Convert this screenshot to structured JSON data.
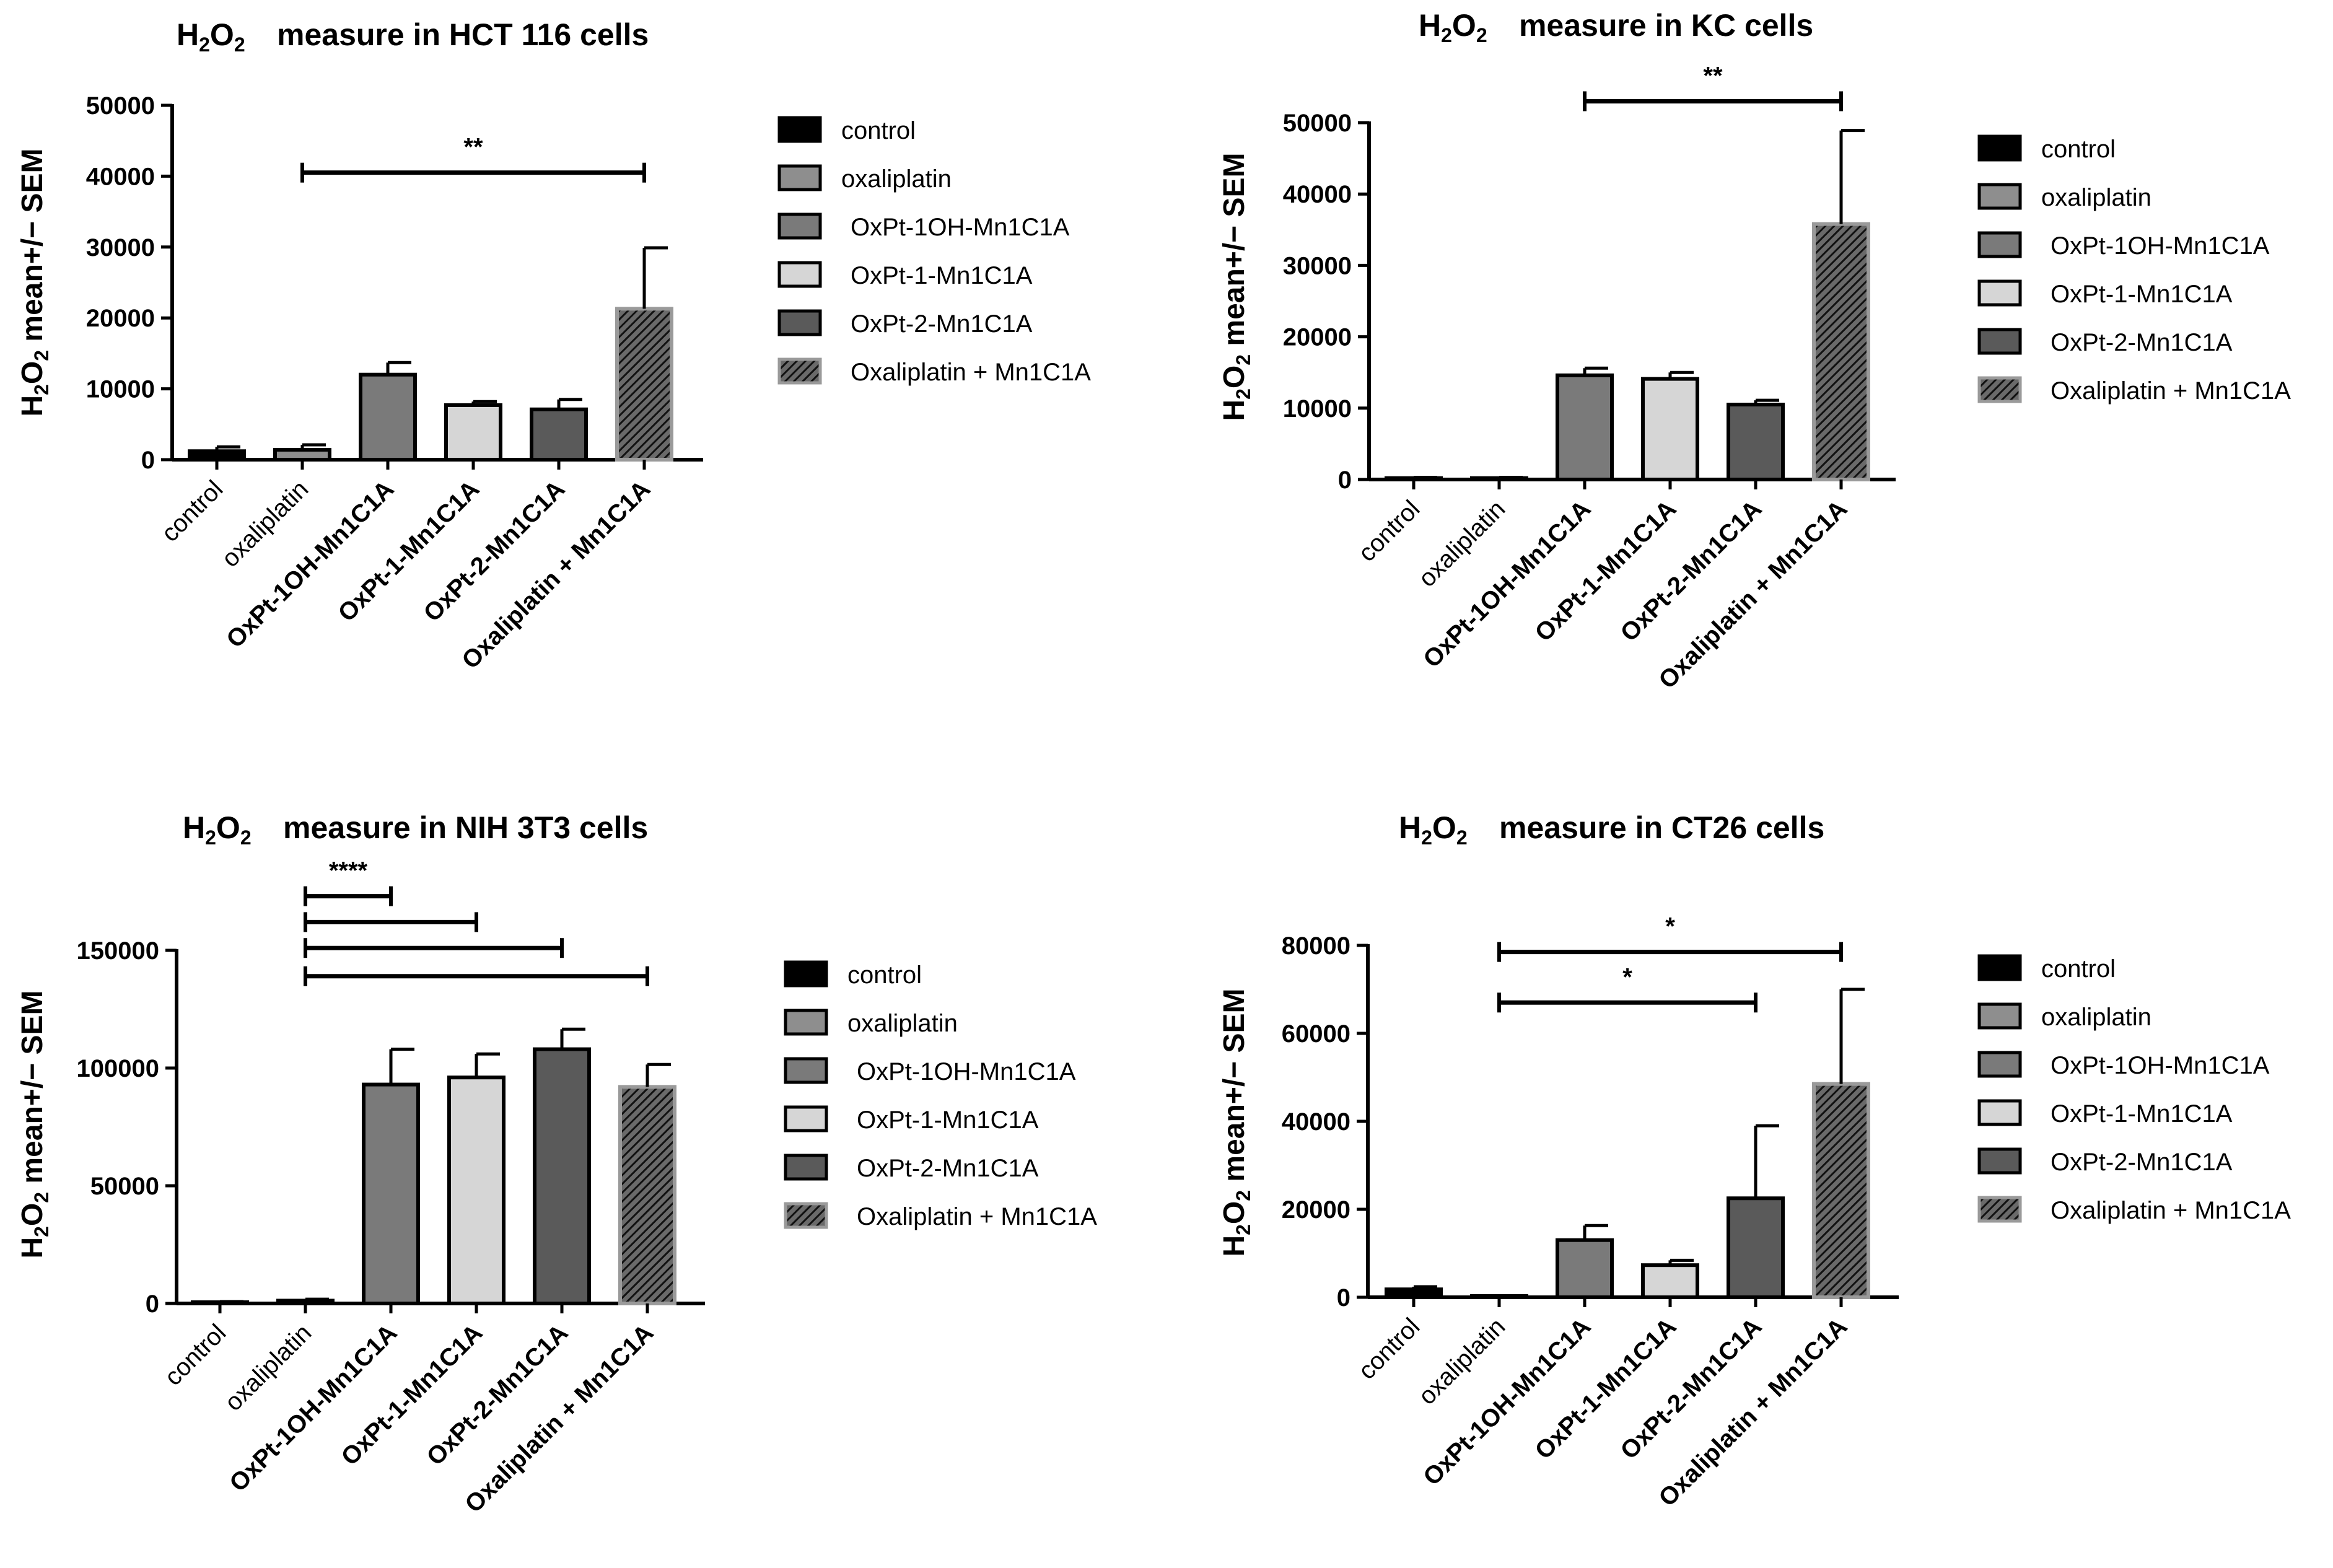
{
  "chart_data": [
    {
      "type": "bar",
      "title": "measure in HCT 116 cells",
      "title_species": "H2O2",
      "ylabel": "H2O2 mean+/− SEM",
      "categories": [
        "control",
        "oxaliplatin",
        "OxPt-1OH-Mn1C1A",
        "OxPt-1-Mn1C1A",
        "OxPt-2-Mn1C1A",
        "Oxaliplatin + Mn1C1A"
      ],
      "values": [
        1200,
        1400,
        12000,
        7700,
        7100,
        21300
      ],
      "errors": [
        600,
        700,
        1700,
        500,
        1400,
        8600
      ],
      "ylim": [
        0,
        50000
      ],
      "yticks": [
        "0",
        "10000",
        "20000",
        "30000",
        "40000",
        "50000"
      ],
      "ytick_values": [
        0,
        10000,
        20000,
        30000,
        40000,
        50000
      ],
      "significance": [
        {
          "from": 1,
          "to": 5,
          "y": 40500,
          "label": "**"
        }
      ],
      "legend": [
        "control",
        "oxaliplatin",
        "OxPt-1OH-Mn1C1A",
        "OxPt-1-Mn1C1A",
        "OxPt-2-Mn1C1A",
        "Oxaliplatin + Mn1C1A"
      ]
    },
    {
      "type": "bar",
      "title": "measure in KC cells",
      "title_species": "H2O2",
      "ylabel": "H2O2 mean+/− SEM",
      "categories": [
        "control",
        "oxaliplatin",
        "OxPt-1OH-Mn1C1A",
        "OxPt-1-Mn1C1A",
        "OxPt-2-Mn1C1A",
        "Oxaliplatin + Mn1C1A"
      ],
      "values": [
        200,
        200,
        14600,
        14100,
        10500,
        35800
      ],
      "errors": [
        100,
        100,
        1000,
        900,
        600,
        13100
      ],
      "ylim": [
        0,
        50000
      ],
      "yticks": [
        "0",
        "10000",
        "20000",
        "30000",
        "40000",
        "50000"
      ],
      "ytick_values": [
        0,
        10000,
        20000,
        30000,
        40000,
        50000
      ],
      "significance": [
        {
          "from": 2,
          "to": 5,
          "y": 53000,
          "label": "**"
        }
      ],
      "legend": [
        "control",
        "oxaliplatin",
        "OxPt-1OH-Mn1C1A",
        "OxPt-1-Mn1C1A",
        "OxPt-2-Mn1C1A",
        "Oxaliplatin + Mn1C1A"
      ]
    },
    {
      "type": "bar",
      "title": "measure in NIH 3T3 cells",
      "title_species": "H2O2",
      "ylabel": "H2O2 mean+/− SEM",
      "categories": [
        "control",
        "oxaliplatin",
        "OxPt-1OH-Mn1C1A",
        "OxPt-1-Mn1C1A",
        "OxPt-2-Mn1C1A",
        "Oxaliplatin + Mn1C1A"
      ],
      "values": [
        500,
        1200,
        93000,
        96000,
        108000,
        92000
      ],
      "errors": [
        300,
        600,
        15000,
        10000,
        8500,
        9500
      ],
      "ylim": [
        0,
        150000
      ],
      "yticks": [
        "0",
        "50000",
        "100000",
        "150000"
      ],
      "ytick_values": [
        0,
        50000,
        100000,
        150000
      ],
      "significance": [
        {
          "from": 1,
          "to": 2,
          "y": 173000,
          "label": "****"
        },
        {
          "from": 1,
          "to": 3,
          "y": 162000,
          "label": ""
        },
        {
          "from": 1,
          "to": 4,
          "y": 151000,
          "label": ""
        },
        {
          "from": 1,
          "to": 5,
          "y": 139000,
          "label": ""
        }
      ],
      "legend": [
        "control",
        "oxaliplatin",
        "OxPt-1OH-Mn1C1A",
        "OxPt-1-Mn1C1A",
        "OxPt-2-Mn1C1A",
        "Oxaliplatin + Mn1C1A"
      ]
    },
    {
      "type": "bar",
      "title": "measure in CT26 cells",
      "title_species": "H2O2",
      "ylabel": "H2O2 mean+/− SEM",
      "categories": [
        "control",
        "oxaliplatin",
        "OxPt-1OH-Mn1C1A",
        "OxPt-1-Mn1C1A",
        "OxPt-2-Mn1C1A",
        "Oxaliplatin + Mn1C1A"
      ],
      "values": [
        1800,
        200,
        13000,
        7300,
        22500,
        48500
      ],
      "errors": [
        600,
        100,
        3300,
        1100,
        16500,
        21500
      ],
      "ylim": [
        0,
        80000
      ],
      "yticks": [
        "0",
        "20000",
        "40000",
        "60000",
        "80000"
      ],
      "ytick_values": [
        0,
        20000,
        40000,
        60000,
        80000
      ],
      "significance": [
        {
          "from": 1,
          "to": 5,
          "y": 78500,
          "label": "*"
        },
        {
          "from": 1,
          "to": 4,
          "y": 67000,
          "label": "*"
        }
      ],
      "legend": [
        "control",
        "oxaliplatin",
        "OxPt-1OH-Mn1C1A",
        "OxPt-1-Mn1C1A",
        "OxPt-2-Mn1C1A",
        "Oxaliplatin + Mn1C1A"
      ]
    }
  ],
  "series_colors": [
    "#000000",
    "#8e8e8e",
    "#7a7a7a",
    "#d6d6d6",
    "#5a5a5a",
    "#2a2a2a"
  ],
  "series_styles": [
    "solid",
    "solid",
    "solid",
    "solid",
    "solid",
    "hatched"
  ]
}
